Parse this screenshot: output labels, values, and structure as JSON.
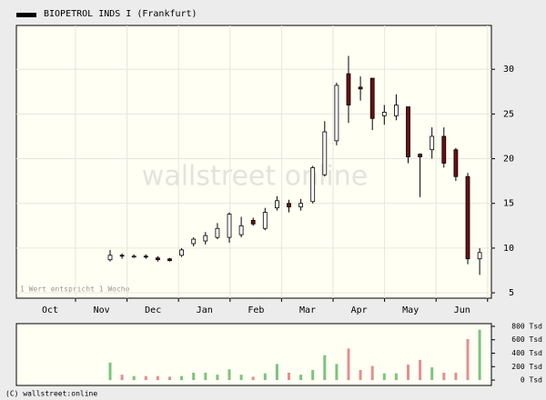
{
  "chart_data": {
    "type": "candlestick",
    "title": "BIOPETROL INDS   I (Frankfurt)",
    "months": [
      "Oct",
      "Nov",
      "Dec",
      "Jan",
      "Feb",
      "Mar",
      "Apr",
      "May",
      "Jun"
    ],
    "note": "1 Wert entspricht 1 Woche",
    "watermark": "wallstreet online",
    "copyright": "(C) wallstreet:online",
    "up_color": "#ffffff",
    "down_color": "#6b1010",
    "volume_up_color": "#7cc47c",
    "volume_down_color": "#e09090",
    "ylim": [
      4.4,
      34.9
    ],
    "yticks": [
      5,
      10,
      15,
      20,
      25,
      30
    ],
    "grid": true,
    "open": [
      8.7,
      9.2,
      9.0,
      9.1,
      8.9,
      8.8,
      9.2,
      10.5,
      10.8,
      11.2,
      11.2,
      11.5,
      13.1,
      12.2,
      14.5,
      15.0,
      14.6,
      15.2,
      18.2,
      22.0,
      29.5,
      28.0,
      29.0,
      24.8,
      24.8,
      25.8,
      20.5,
      21.0,
      22.5,
      21.0,
      18.0,
      8.8
    ],
    "high": [
      9.8,
      9.4,
      9.3,
      9.3,
      9.1,
      8.9,
      10.0,
      11.2,
      11.8,
      12.8,
      14.0,
      13.5,
      13.4,
      14.5,
      15.8,
      15.4,
      15.5,
      19.2,
      24.2,
      28.5,
      31.5,
      29.2,
      29.0,
      26.0,
      27.2,
      25.8,
      20.6,
      23.5,
      23.5,
      21.2,
      18.4,
      10.0
    ],
    "low": [
      8.5,
      8.8,
      8.9,
      8.8,
      8.5,
      8.5,
      9.0,
      10.2,
      10.4,
      11.0,
      10.6,
      11.2,
      12.5,
      12.0,
      14.2,
      14.0,
      14.2,
      15.0,
      18.0,
      21.5,
      24.0,
      26.5,
      23.2,
      23.8,
      24.3,
      19.5,
      15.7,
      20.0,
      19.0,
      17.5,
      8.2,
      7.0
    ],
    "close": [
      9.2,
      9.1,
      9.1,
      9.0,
      8.7,
      8.6,
      9.8,
      11.0,
      11.4,
      12.2,
      13.8,
      12.5,
      12.7,
      14.0,
      15.3,
      14.6,
      15.0,
      19.0,
      23.0,
      28.2,
      26.0,
      27.8,
      24.5,
      25.2,
      26.0,
      20.2,
      20.2,
      22.5,
      19.5,
      18.0,
      8.8,
      9.5
    ],
    "volume": [
      260,
      80,
      60,
      60,
      60,
      50,
      60,
      110,
      110,
      80,
      160,
      80,
      50,
      100,
      240,
      110,
      80,
      150,
      370,
      240,
      470,
      150,
      210,
      100,
      100,
      230,
      300,
      190,
      110,
      110,
      610,
      750
    ],
    "volume_ylim": [
      -80,
      840
    ],
    "volume_ticks": [
      {
        "value": 0,
        "label": "0 Tsd"
      },
      {
        "value": 200,
        "label": "200 Tsd"
      },
      {
        "value": 400,
        "label": "400 Tsd"
      },
      {
        "value": 600,
        "label": "600 Tsd"
      },
      {
        "value": 800,
        "label": "800 Tsd"
      }
    ]
  }
}
